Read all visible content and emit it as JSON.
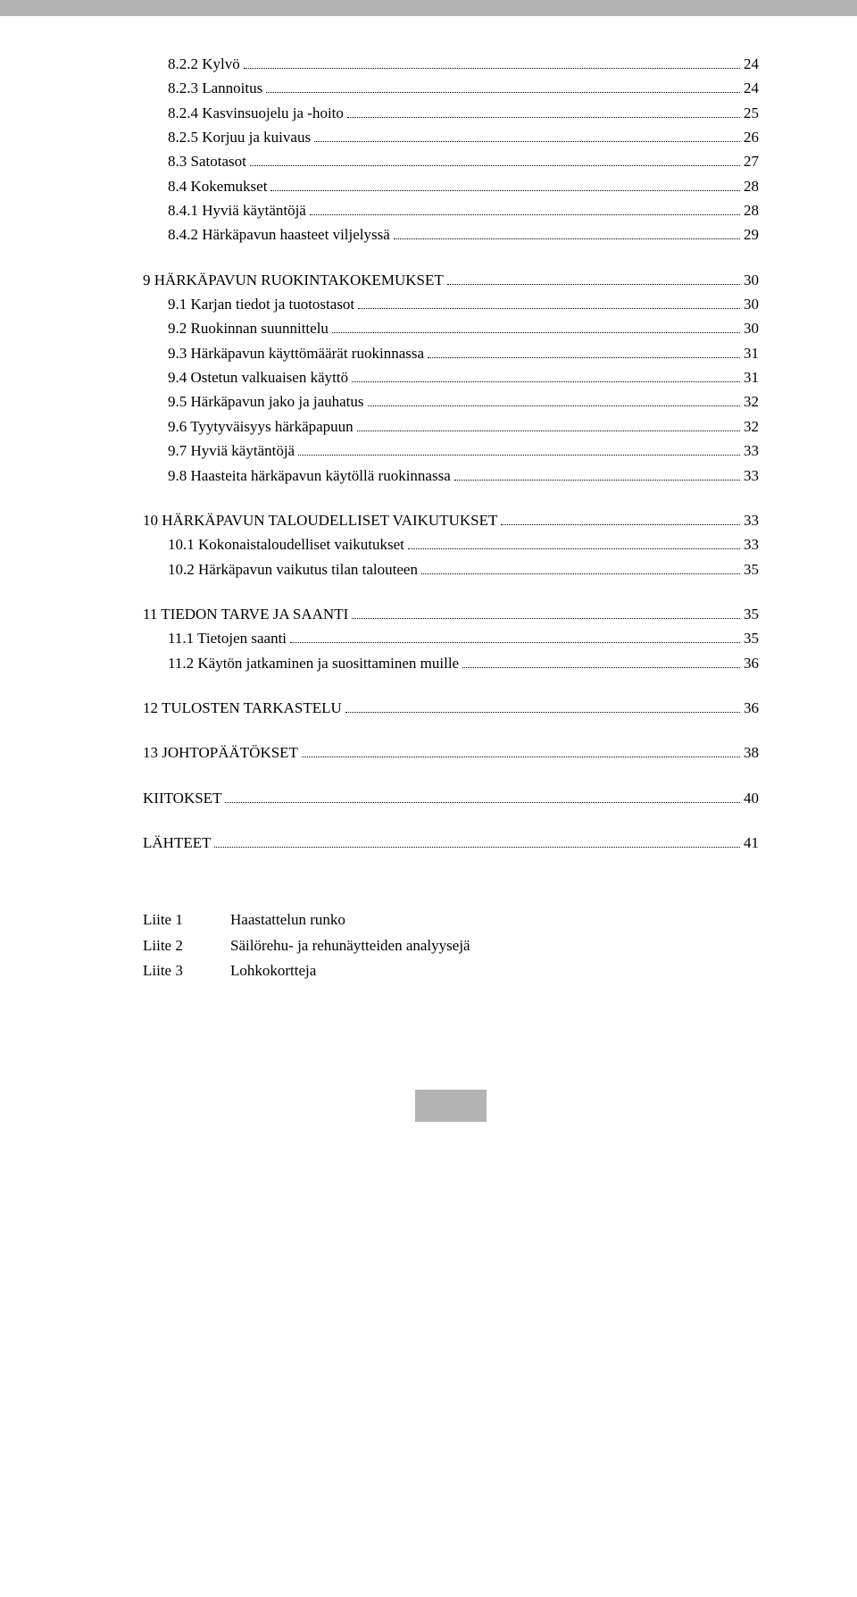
{
  "toc": [
    {
      "label": "8.2.2  Kylvö",
      "page": "24",
      "indent": 1,
      "gapBefore": null
    },
    {
      "label": "8.2.3  Lannoitus",
      "page": "24",
      "indent": 1,
      "gapBefore": null
    },
    {
      "label": "8.2.4  Kasvinsuojelu ja -hoito",
      "page": "25",
      "indent": 1,
      "gapBefore": null
    },
    {
      "label": "8.2.5  Korjuu ja kuivaus",
      "page": "26",
      "indent": 1,
      "gapBefore": null
    },
    {
      "label": "8.3  Satotasot",
      "page": "27",
      "indent": 1,
      "gapBefore": null
    },
    {
      "label": "8.4  Kokemukset",
      "page": "28",
      "indent": 1,
      "gapBefore": null
    },
    {
      "label": "8.4.1  Hyviä käytäntöjä",
      "page": "28",
      "indent": 1,
      "gapBefore": null
    },
    {
      "label": "8.4.2  Härkäpavun haasteet viljelyssä",
      "page": "29",
      "indent": 1,
      "gapBefore": null
    },
    {
      "label": "9  HÄRKÄPAVUN RUOKINTAKOKEMUKSET",
      "page": "30",
      "indent": 0,
      "gapBefore": "m"
    },
    {
      "label": "9.1  Karjan tiedot ja tuotostasot",
      "page": "30",
      "indent": 1,
      "gapBefore": null
    },
    {
      "label": "9.2  Ruokinnan suunnittelu",
      "page": "30",
      "indent": 1,
      "gapBefore": null
    },
    {
      "label": "9.3  Härkäpavun käyttömäärät ruokinnassa",
      "page": "31",
      "indent": 1,
      "gapBefore": null
    },
    {
      "label": "9.4  Ostetun valkuaisen käyttö",
      "page": "31",
      "indent": 1,
      "gapBefore": null
    },
    {
      "label": "9.5  Härkäpavun jako ja jauhatus",
      "page": "32",
      "indent": 1,
      "gapBefore": null
    },
    {
      "label": "9.6  Tyytyväisyys härkäpapuun",
      "page": "32",
      "indent": 1,
      "gapBefore": null
    },
    {
      "label": "9.7  Hyviä käytäntöjä",
      "page": "33",
      "indent": 1,
      "gapBefore": null
    },
    {
      "label": "9.8  Haasteita härkäpavun käytöllä ruokinnassa",
      "page": "33",
      "indent": 1,
      "gapBefore": null
    },
    {
      "label": "10 HÄRKÄPAVUN TALOUDELLISET VAIKUTUKSET",
      "page": "33",
      "indent": 0,
      "gapBefore": "m"
    },
    {
      "label": "10.1 Kokonaistaloudelliset vaikutukset",
      "page": "33",
      "indent": 1,
      "gapBefore": null
    },
    {
      "label": "10.2 Härkäpavun vaikutus tilan talouteen",
      "page": "35",
      "indent": 1,
      "gapBefore": null
    },
    {
      "label": "11 TIEDON TARVE JA SAANTI",
      "page": "35",
      "indent": 0,
      "gapBefore": "m"
    },
    {
      "label": "11.1 Tietojen saanti",
      "page": "35",
      "indent": 1,
      "gapBefore": null
    },
    {
      "label": "11.2 Käytön jatkaminen ja suosittaminen muille",
      "page": "36",
      "indent": 1,
      "gapBefore": null
    },
    {
      "label": "12 TULOSTEN TARKASTELU",
      "page": "36",
      "indent": 0,
      "gapBefore": "m"
    },
    {
      "label": "13 JOHTOPÄÄTÖKSET",
      "page": "38",
      "indent": 0,
      "gapBefore": "m"
    },
    {
      "label": "KIITOKSET",
      "page": "40",
      "indent": 0,
      "gapBefore": "m"
    },
    {
      "label": "LÄHTEET",
      "page": "41",
      "indent": 0,
      "gapBefore": "m"
    }
  ],
  "appendix": [
    {
      "key": "Liite 1",
      "value": "Haastattelun runko"
    },
    {
      "key": "Liite 2",
      "value": "Säilörehu- ja rehunäytteiden analyysejä"
    },
    {
      "key": "Liite 3",
      "value": "Lohkokortteja"
    }
  ],
  "colors": {
    "bar": "#b3b3b3",
    "text": "#000000",
    "background": "#ffffff"
  },
  "typography": {
    "font_family": "Times New Roman",
    "font_size_pt": 12
  }
}
